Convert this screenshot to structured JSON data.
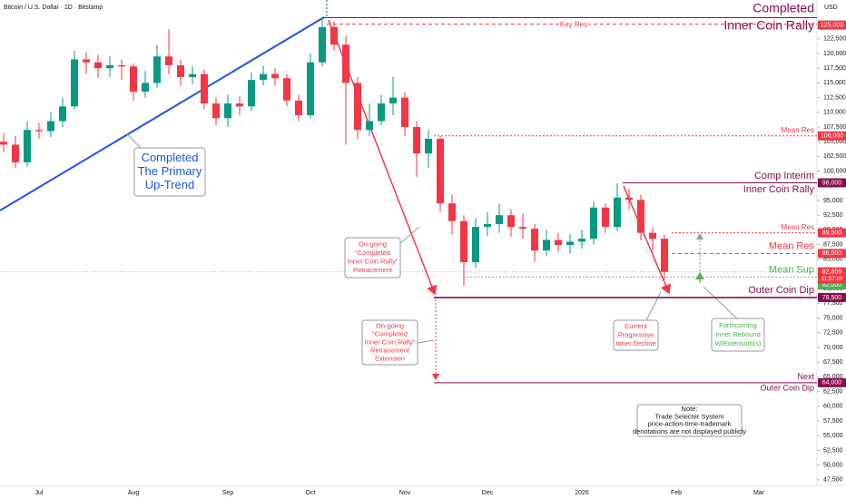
{
  "chart_data": {
    "type": "candlestick",
    "title": "Bitcoin / U.S. Dollar · 1D · Bitstamp",
    "currency": "USD",
    "up_color": "#089981",
    "down_color": "#f23645",
    "grid": false,
    "categories": [
      null,
      null,
      null,
      "Jul",
      null,
      null,
      null,
      null,
      null,
      null,
      null,
      "Aug",
      null,
      null,
      null,
      null,
      null,
      null,
      null,
      "Sep",
      null,
      null,
      null,
      null,
      null,
      null,
      "Oct",
      null,
      null,
      null,
      null,
      null,
      null,
      null,
      "Nov",
      null,
      null,
      null,
      null,
      null,
      null,
      "Dec",
      null,
      null,
      null,
      null,
      null,
      null,
      null,
      "2026",
      null,
      null,
      null,
      null,
      null,
      null,
      null,
      "Feb",
      null,
      null,
      null,
      null,
      null,
      null,
      "Mar"
    ],
    "open": [
      105000,
      104500,
      101500,
      107000,
      106800,
      108500,
      111000,
      119000,
      118500,
      117500,
      118000,
      117800,
      113500,
      115000,
      119500,
      118000,
      116000,
      116500,
      111500,
      109000,
      111500,
      111000,
      115500,
      116500,
      115800,
      112000,
      109500,
      118500,
      124500,
      121500,
      115000,
      107000,
      108500,
      111500,
      112500,
      107500,
      103000,
      105500,
      94500,
      91500,
      84500,
      90500,
      91000,
      92500,
      90500,
      90200,
      86500,
      88300,
      87400,
      88000,
      88500,
      93800,
      90500,
      95500,
      95100,
      89500,
      88500,
      null,
      null,
      null,
      null,
      null,
      null,
      null,
      null
    ],
    "high": [
      106500,
      106000,
      108500,
      108200,
      110000,
      112500,
      120500,
      120200,
      119800,
      119500,
      119000,
      118300,
      117000,
      121500,
      124100,
      119000,
      117800,
      117300,
      112500,
      113000,
      112800,
      116800,
      117900,
      117500,
      116500,
      113000,
      120000,
      126100,
      125500,
      123000,
      116000,
      111500,
      113000,
      116000,
      113500,
      108500,
      107000,
      106000,
      96000,
      92500,
      92000,
      93000,
      94500,
      93500,
      92800,
      91000,
      90000,
      89500,
      89300,
      90000,
      94800,
      94500,
      97900,
      97000,
      96000,
      90500,
      89200,
      null,
      null,
      null,
      null,
      null,
      null,
      null,
      null
    ],
    "low": [
      103200,
      100500,
      100800,
      105500,
      105800,
      107500,
      110500,
      116500,
      115800,
      116000,
      115500,
      112000,
      112500,
      114200,
      116500,
      114500,
      114800,
      110500,
      107800,
      107500,
      109500,
      110200,
      114600,
      114500,
      111000,
      108500,
      109000,
      117800,
      120500,
      104500,
      105500,
      106000,
      107800,
      109500,
      106000,
      99000,
      100500,
      93000,
      89200,
      80500,
      83500,
      89000,
      89500,
      88800,
      88500,
      84500,
      85500,
      86200,
      86000,
      86800,
      87500,
      89500,
      89800,
      93500,
      88200,
      86500,
      81500,
      null,
      null,
      null,
      null,
      null,
      null,
      null,
      null
    ],
    "close": [
      104500,
      101500,
      107000,
      106800,
      108500,
      111000,
      119000,
      118500,
      117500,
      118000,
      117800,
      113500,
      115000,
      119500,
      118000,
      116000,
      116500,
      111500,
      109000,
      111500,
      111000,
      115500,
      116500,
      115800,
      112000,
      109500,
      118500,
      124500,
      121500,
      115000,
      107000,
      108500,
      111500,
      112500,
      107500,
      103000,
      105500,
      94500,
      91500,
      84500,
      90500,
      91000,
      92500,
      90500,
      90200,
      86500,
      88300,
      87400,
      88000,
      88500,
      93800,
      90500,
      95500,
      95100,
      89500,
      88500,
      82859,
      null,
      null,
      null,
      null,
      null,
      null,
      null,
      null
    ],
    "ylim": [
      46700,
      129100
    ],
    "yticks": [
      {
        "value": 47500,
        "label": "47,500"
      },
      {
        "value": 50000,
        "label": "50,000"
      },
      {
        "value": 52500,
        "label": "52,500"
      },
      {
        "value": 55000,
        "label": "55,000"
      },
      {
        "value": 57500,
        "label": "57,500"
      },
      {
        "value": 60000,
        "label": "60,000"
      },
      {
        "value": 62500,
        "label": "62,500"
      },
      {
        "value": 65000,
        "label": "65,000"
      },
      {
        "value": 67500,
        "label": "67,500"
      },
      {
        "value": 70000,
        "label": "70,000"
      },
      {
        "value": 72500,
        "label": "72,500"
      },
      {
        "value": 75000,
        "label": "75,000"
      },
      {
        "value": 77500,
        "label": "77,500"
      },
      {
        "value": 80000,
        "label": "80,000"
      },
      {
        "value": 82500,
        "label": "82,500"
      },
      {
        "value": 85000,
        "label": "85,000"
      },
      {
        "value": 87500,
        "label": "87,500"
      },
      {
        "value": 90000,
        "label": "90,000"
      },
      {
        "value": 92500,
        "label": "92,500"
      },
      {
        "value": 95000,
        "label": "95,000"
      },
      {
        "value": 97500,
        "label": "97,500"
      },
      {
        "value": 100000,
        "label": "100,000"
      },
      {
        "value": 102500,
        "label": "102,500"
      },
      {
        "value": 105000,
        "label": "105,000"
      },
      {
        "value": 107500,
        "label": "107,500"
      },
      {
        "value": 110000,
        "label": "110,000"
      },
      {
        "value": 112500,
        "label": "112,500"
      },
      {
        "value": 115000,
        "label": "115,000"
      },
      {
        "value": 117500,
        "label": "117,500"
      },
      {
        "value": 120000,
        "label": "120,000"
      },
      {
        "value": 122500,
        "label": "122,500"
      }
    ],
    "levels": [
      {
        "value": 126100,
        "text": [
          "Completed",
          "Inner Coin Rally"
        ],
        "color": "#880e4f",
        "style": "solid"
      },
      {
        "value": 125000,
        "label": "125,000",
        "text": [
          "Key Res"
        ],
        "color": "#f23645",
        "style": "dashed"
      },
      {
        "value": 106000,
        "label": "106,000",
        "text": [
          "Mean Res"
        ],
        "color": "#f23645",
        "style": "dotted"
      },
      {
        "value": 98000,
        "label": "98,000",
        "text": [
          "Comp Interim",
          "Inner Coin Rally"
        ],
        "color": "#880e4f",
        "style": "solid"
      },
      {
        "value": 89500,
        "label": "89,500",
        "text": [
          "Mean Res"
        ],
        "color": "#f23645",
        "style": "dotted"
      },
      {
        "value": 86000,
        "label": "86,000",
        "text": [
          "Mean Res"
        ],
        "color": "#f23645",
        "style": "dashed"
      },
      {
        "value": 82000,
        "label": "82,000",
        "text": [
          "Mean Sup"
        ],
        "color": "#4caf50",
        "style": "dotted"
      },
      {
        "value": 78500,
        "label": "78,500",
        "text": [
          "Outer Coin Dip"
        ],
        "color": "#880e4f",
        "style": "solid"
      },
      {
        "value": 64000,
        "label": "64,000",
        "text": [
          "Next",
          "Outer Coin Dip"
        ],
        "color": "#880e4f",
        "style": "solid"
      }
    ],
    "last_price": {
      "value": 82859,
      "label": "82,859",
      "countdown": "11:57:10",
      "color": "#f23645"
    },
    "annotations": [
      {
        "lines": [
          "Completed",
          "The Primary",
          "Up-Trend"
        ],
        "color": "#1e53e5"
      },
      {
        "lines": [
          "On-going",
          "\"Completed",
          "Inner Coin Rally\"",
          "Retracement"
        ],
        "color": "#f23645"
      },
      {
        "lines": [
          "On-going",
          "\"Completed",
          "Inner Coin Rally\"",
          "Retracement",
          "Extension"
        ],
        "color": "#f23645"
      },
      {
        "lines": [
          "Current",
          "Progressive",
          "Inner Decline"
        ],
        "color": "#f23645"
      },
      {
        "lines": [
          "Forthcoming",
          "Inner Rebound",
          "W/Extension(s)"
        ],
        "color": "#4caf50"
      },
      {
        "lines": [
          "Note:",
          "Trade Selecter System",
          "price-action-time-trademark",
          "denotations are not displayed publicly"
        ],
        "color": "#131722"
      }
    ]
  }
}
